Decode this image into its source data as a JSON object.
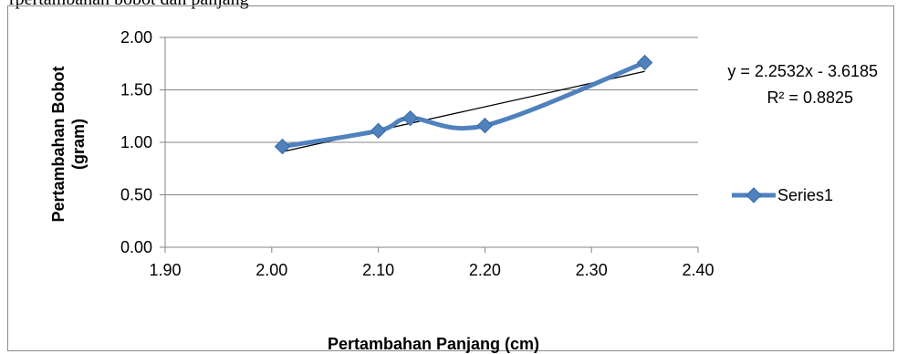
{
  "caption": "rpertambahan bobot dan panjang",
  "chart_data": {
    "type": "line",
    "smooth": true,
    "xlabel": "Pertambahan Panjang (cm)",
    "ylabel_lines": [
      "Pertambahan Bobot",
      "(gram)"
    ],
    "xlim": [
      1.9,
      2.4
    ],
    "ylim": [
      0,
      2
    ],
    "x_ticks": [
      "1.90",
      "2.00",
      "2.10",
      "2.20",
      "2.30",
      "2.40"
    ],
    "y_ticks": [
      "0.00",
      "0.50",
      "1.00",
      "1.50",
      "2.00"
    ],
    "grid": "horizontal",
    "legend_position": "right",
    "series": [
      {
        "name": "Series1",
        "color": "#4f81bd",
        "marker": "diamond",
        "points": [
          {
            "x": 2.01,
            "y": 0.96
          },
          {
            "x": 2.1,
            "y": 1.11
          },
          {
            "x": 2.13,
            "y": 1.23
          },
          {
            "x": 2.2,
            "y": 1.16
          },
          {
            "x": 2.35,
            "y": 1.76
          }
        ]
      }
    ],
    "trendline": {
      "type": "linear",
      "color": "#000000",
      "slope": 2.2532,
      "intercept": -3.6185,
      "equation": "y = 2.2532x - 3.6185",
      "r_squared": "R² = 0.8825"
    }
  }
}
